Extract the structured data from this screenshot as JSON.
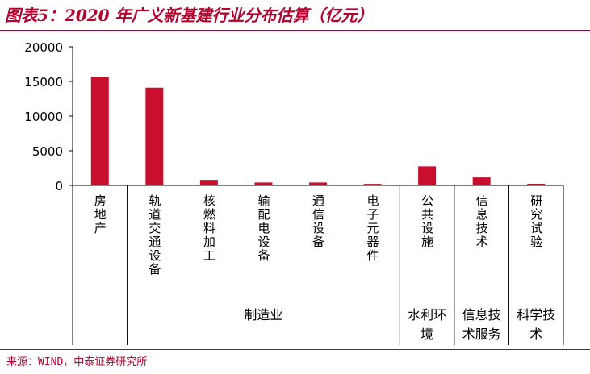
{
  "title": "图表5：2020 年广义新基建行业分布估算（亿元）",
  "source": "来源：WIND，中泰证券研究所",
  "colors": {
    "accent": "#b5002f",
    "bar": "#c8102e"
  },
  "chart_data": {
    "type": "bar",
    "ylim": [
      0,
      20000
    ],
    "yticks": [
      "20000",
      "15000",
      "10000",
      "5000",
      "0"
    ],
    "categories": [
      "房地产",
      "轨道交通设备",
      "核燃料加工",
      "输配电设备",
      "通信设备",
      "电子元器件",
      "公共设施",
      "信息技术",
      "研究试验"
    ],
    "values": [
      15700,
      14100,
      800,
      420,
      420,
      220,
      2750,
      1150,
      230
    ],
    "groups": [
      {
        "label": "",
        "span": 1
      },
      {
        "label": "制造业",
        "span": 5
      },
      {
        "label": "水利环境",
        "span": 1
      },
      {
        "label": "信息技术服务",
        "span": 1
      },
      {
        "label": "科学技术",
        "span": 1
      }
    ]
  }
}
